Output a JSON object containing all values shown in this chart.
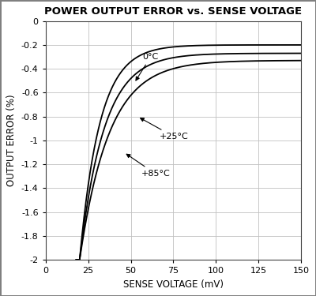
{
  "title": "POWER OUTPUT ERROR vs. SENSE VOLTAGE",
  "xlabel": "SENSE VOLTAGE (mV)",
  "ylabel": "OUTPUT ERROR (%)",
  "xlim": [
    0,
    150
  ],
  "ylim": [
    -2,
    0
  ],
  "xticks": [
    0,
    25,
    50,
    75,
    100,
    125,
    150
  ],
  "yticks": [
    0,
    -0.2,
    -0.4,
    -0.6,
    -0.8,
    -1.0,
    -1.2,
    -1.4,
    -1.6,
    -1.8,
    -2.0
  ],
  "curve_params": [
    {
      "asym": -0.2,
      "amp": -1.8,
      "k": 0.085,
      "x0": 20,
      "label": "0°C",
      "ann_text": "0°C",
      "ann_x": 57,
      "ann_y": -0.3,
      "arr_x": 52,
      "arr_y": -0.52
    },
    {
      "asym": -0.27,
      "amp": -1.73,
      "k": 0.07,
      "x0": 20,
      "label": "+25°C",
      "ann_text": "+25°C",
      "ann_x": 67,
      "ann_y": -0.97,
      "arr_x": 54,
      "arr_y": -0.8
    },
    {
      "asym": -0.33,
      "amp": -1.67,
      "k": 0.058,
      "x0": 20,
      "label": "+85°C",
      "ann_text": "+85°C",
      "ann_x": 56,
      "ann_y": -1.28,
      "arr_x": 46,
      "arr_y": -1.1
    }
  ],
  "background_color": "#ffffff",
  "border_color": "#808080",
  "grid_color": "#c0c0c0",
  "line_color": "#000000",
  "title_fontsize": 9.5,
  "label_fontsize": 8.5,
  "tick_fontsize": 8,
  "ann_fontsize": 8
}
